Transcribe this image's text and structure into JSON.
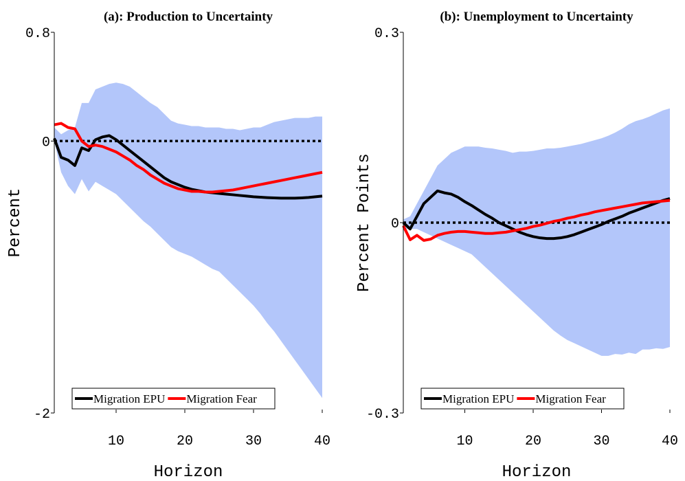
{
  "chart_data": [
    {
      "type": "line",
      "title": "(a): Production to Uncertainty",
      "x_label": "Horizon",
      "y_label": "Percent",
      "x": [
        1,
        2,
        3,
        4,
        5,
        6,
        7,
        8,
        9,
        10,
        11,
        12,
        13,
        14,
        15,
        16,
        17,
        18,
        19,
        20,
        21,
        22,
        23,
        24,
        25,
        26,
        27,
        28,
        29,
        30,
        31,
        32,
        33,
        34,
        35,
        36,
        37,
        38,
        39,
        40
      ],
      "xlim": [
        1,
        40
      ],
      "xticks": [
        10,
        20,
        30,
        40
      ],
      "ylim": [
        -2,
        0.8
      ],
      "yticks": [
        -2,
        0,
        0.8
      ],
      "hline": 0,
      "band": {
        "color": "#b3c6fa",
        "upper": [
          0.1,
          0.05,
          0.08,
          0.1,
          0.28,
          0.28,
          0.38,
          0.4,
          0.42,
          0.43,
          0.42,
          0.4,
          0.36,
          0.32,
          0.28,
          0.25,
          0.2,
          0.15,
          0.13,
          0.12,
          0.11,
          0.11,
          0.1,
          0.1,
          0.1,
          0.09,
          0.09,
          0.08,
          0.09,
          0.1,
          0.1,
          0.12,
          0.14,
          0.15,
          0.16,
          0.17,
          0.17,
          0.17,
          0.18,
          0.18
        ],
        "lower": [
          0.0,
          -0.23,
          -0.33,
          -0.39,
          -0.28,
          -0.37,
          -0.3,
          -0.33,
          -0.36,
          -0.39,
          -0.44,
          -0.49,
          -0.54,
          -0.59,
          -0.63,
          -0.68,
          -0.73,
          -0.78,
          -0.81,
          -0.83,
          -0.85,
          -0.88,
          -0.91,
          -0.94,
          -0.96,
          -1.01,
          -1.06,
          -1.11,
          -1.16,
          -1.21,
          -1.27,
          -1.34,
          -1.4,
          -1.47,
          -1.54,
          -1.61,
          -1.68,
          -1.75,
          -1.82,
          -1.89
        ]
      },
      "series": [
        {
          "name": "Migration EPU",
          "color": "#000000",
          "values": [
            0.02,
            -0.12,
            -0.14,
            -0.18,
            -0.05,
            -0.07,
            0.01,
            0.03,
            0.04,
            0.01,
            -0.03,
            -0.07,
            -0.11,
            -0.15,
            -0.19,
            -0.23,
            -0.27,
            -0.3,
            -0.32,
            -0.34,
            -0.355,
            -0.365,
            -0.375,
            -0.38,
            -0.385,
            -0.39,
            -0.395,
            -0.4,
            -0.405,
            -0.41,
            -0.413,
            -0.416,
            -0.418,
            -0.42,
            -0.42,
            -0.42,
            -0.418,
            -0.415,
            -0.41,
            -0.405
          ]
        },
        {
          "name": "Migration Fear",
          "color": "#ff0000",
          "values": [
            0.12,
            0.13,
            0.1,
            0.09,
            0.0,
            -0.04,
            -0.03,
            -0.04,
            -0.06,
            -0.08,
            -0.11,
            -0.14,
            -0.18,
            -0.21,
            -0.25,
            -0.28,
            -0.31,
            -0.33,
            -0.35,
            -0.36,
            -0.37,
            -0.37,
            -0.375,
            -0.375,
            -0.37,
            -0.365,
            -0.36,
            -0.35,
            -0.34,
            -0.33,
            -0.32,
            -0.31,
            -0.3,
            -0.29,
            -0.28,
            -0.27,
            -0.26,
            -0.25,
            -0.24,
            -0.23
          ]
        }
      ]
    },
    {
      "type": "line",
      "title": "(b): Unemployment to Uncertainty",
      "x_label": "Horizon",
      "y_label": "Percent Points",
      "x": [
        1,
        2,
        3,
        4,
        5,
        6,
        7,
        8,
        9,
        10,
        11,
        12,
        13,
        14,
        15,
        16,
        17,
        18,
        19,
        20,
        21,
        22,
        23,
        24,
        25,
        26,
        27,
        28,
        29,
        30,
        31,
        32,
        33,
        34,
        35,
        36,
        37,
        38,
        39,
        40
      ],
      "xlim": [
        1,
        40
      ],
      "xticks": [
        10,
        20,
        30,
        40
      ],
      "ylim": [
        -0.3,
        0.3
      ],
      "yticks": [
        -0.3,
        0,
        0.3
      ],
      "hline": 0,
      "band": {
        "color": "#b3c6fa",
        "upper": [
          0.005,
          0.01,
          0.03,
          0.05,
          0.07,
          0.09,
          0.1,
          0.11,
          0.115,
          0.12,
          0.12,
          0.12,
          0.118,
          0.117,
          0.115,
          0.113,
          0.11,
          0.112,
          0.112,
          0.113,
          0.115,
          0.117,
          0.117,
          0.118,
          0.12,
          0.122,
          0.124,
          0.127,
          0.13,
          0.133,
          0.137,
          0.142,
          0.148,
          0.155,
          0.16,
          0.163,
          0.167,
          0.172,
          0.177,
          0.18
        ],
        "lower": [
          -0.01,
          -0.01,
          -0.01,
          -0.015,
          -0.02,
          -0.025,
          -0.03,
          -0.035,
          -0.04,
          -0.045,
          -0.05,
          -0.06,
          -0.07,
          -0.08,
          -0.09,
          -0.1,
          -0.11,
          -0.12,
          -0.13,
          -0.14,
          -0.15,
          -0.16,
          -0.17,
          -0.178,
          -0.185,
          -0.19,
          -0.195,
          -0.2,
          -0.205,
          -0.21,
          -0.21,
          -0.207,
          -0.208,
          -0.205,
          -0.207,
          -0.2,
          -0.2,
          -0.198,
          -0.199,
          -0.196
        ]
      },
      "series": [
        {
          "name": "Migration EPU",
          "color": "#000000",
          "values": [
            0.0,
            -0.01,
            0.01,
            0.03,
            0.04,
            0.05,
            0.047,
            0.045,
            0.04,
            0.033,
            0.027,
            0.02,
            0.013,
            0.007,
            0.0,
            -0.005,
            -0.01,
            -0.015,
            -0.019,
            -0.022,
            -0.024,
            -0.025,
            -0.025,
            -0.024,
            -0.022,
            -0.019,
            -0.015,
            -0.011,
            -0.007,
            -0.003,
            0.002,
            0.006,
            0.01,
            0.015,
            0.019,
            0.023,
            0.027,
            0.031,
            0.035,
            0.038
          ]
        },
        {
          "name": "Migration Fear",
          "color": "#ff0000",
          "values": [
            -0.005,
            -0.027,
            -0.02,
            -0.028,
            -0.026,
            -0.02,
            -0.017,
            -0.015,
            -0.014,
            -0.014,
            -0.015,
            -0.016,
            -0.017,
            -0.017,
            -0.016,
            -0.015,
            -0.013,
            -0.011,
            -0.009,
            -0.006,
            -0.004,
            -0.001,
            0.002,
            0.004,
            0.007,
            0.009,
            0.012,
            0.014,
            0.017,
            0.019,
            0.021,
            0.023,
            0.025,
            0.027,
            0.029,
            0.031,
            0.032,
            0.033,
            0.034,
            0.035
          ]
        }
      ]
    }
  ]
}
